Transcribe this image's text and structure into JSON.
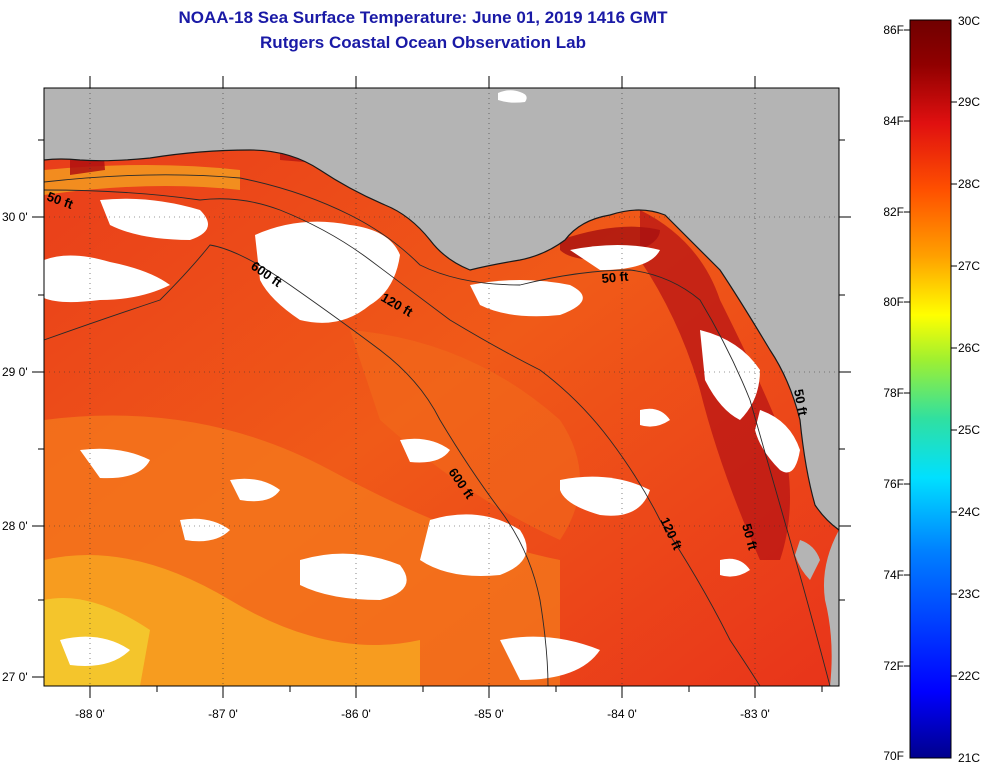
{
  "header": {
    "title": "NOAA-18 Sea Surface Temperature:  June 01, 2019 1416 GMT",
    "subtitle": "Rutgers Coastal Ocean Observation Lab"
  },
  "map": {
    "longitude_labels": [
      "-88 0'",
      "-87 0'",
      "-86 0'",
      "-85 0'",
      "-84 0'",
      "-83 0'"
    ],
    "latitude_labels": [
      "30 0'",
      "29 0'",
      "28 0'",
      "27 0'"
    ],
    "contour_labels": [
      "50 ft",
      "600 ft",
      "120 ft",
      "50 ft",
      "600 ft",
      "120 ft",
      "50 ft",
      "50 ft"
    ],
    "colors": {
      "land": "#b4b4b4",
      "cloud": "#ffffff",
      "sea_warm": "#e8321a",
      "sea_mid": "#f06a18",
      "sea_hot": "#b01010"
    }
  },
  "colorbar": {
    "fahrenheit_labels": [
      "86F",
      "84F",
      "82F",
      "80F",
      "78F",
      "76F",
      "74F",
      "72F",
      "70F"
    ],
    "celsius_labels": [
      "30C",
      "29C",
      "28C",
      "27C",
      "26C",
      "25C",
      "24C",
      "23C",
      "22C",
      "21C"
    ],
    "range_c": [
      21,
      30
    ],
    "stops": [
      "#00008c",
      "#0000ff",
      "#0080ff",
      "#00e0ff",
      "#30e0a0",
      "#a0f030",
      "#ffff00",
      "#ffa000",
      "#ff5000",
      "#e01010",
      "#900000",
      "#700000"
    ]
  }
}
